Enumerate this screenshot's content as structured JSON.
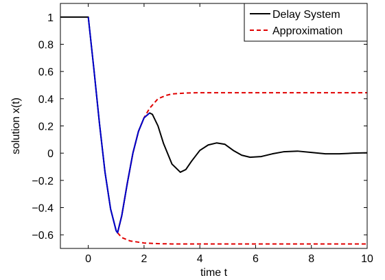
{
  "chart_data": {
    "type": "line",
    "title": "",
    "xlabel": "time t",
    "ylabel": "solution x(t)",
    "xlim": [
      -1,
      10
    ],
    "ylim": [
      -0.7,
      1.1
    ],
    "xticks": [
      0,
      2,
      4,
      6,
      8,
      10
    ],
    "yticks": [
      -0.6,
      -0.4,
      -0.2,
      0,
      0.2,
      0.4,
      0.6,
      0.8,
      1
    ],
    "xtick_labels": [
      "0",
      "2",
      "4",
      "6",
      "8",
      "10"
    ],
    "ytick_labels": [
      "−0.6",
      "−0.4",
      "−0.2",
      "0",
      "0.2",
      "0.4",
      "0.6",
      "0.8",
      "1"
    ],
    "grid": false,
    "legend_position": "top-right",
    "series": [
      {
        "name": "Delay System",
        "color": "#000000",
        "style": "solid",
        "x": [
          -1,
          0,
          0.2,
          0.4,
          0.6,
          0.8,
          1.0,
          1.05,
          1.2,
          1.4,
          1.6,
          1.8,
          2.0,
          2.2,
          2.3,
          2.5,
          2.7,
          3.0,
          3.3,
          3.5,
          3.7,
          4.0,
          4.3,
          4.6,
          4.9,
          5.2,
          5.5,
          5.8,
          6.2,
          6.6,
          7.0,
          7.5,
          8.0,
          8.5,
          9.0,
          9.5,
          10.0
        ],
        "y": [
          1,
          1,
          0.62,
          0.22,
          -0.14,
          -0.41,
          -0.57,
          -0.585,
          -0.46,
          -0.22,
          0.0,
          0.16,
          0.26,
          0.295,
          0.285,
          0.2,
          0.07,
          -0.08,
          -0.14,
          -0.12,
          -0.06,
          0.02,
          0.06,
          0.075,
          0.065,
          0.02,
          -0.015,
          -0.03,
          -0.025,
          -0.005,
          0.01,
          0.015,
          0.005,
          -0.005,
          -0.005,
          0.0,
          0.003
        ]
      },
      {
        "name": "Approximation",
        "color": "#e00000",
        "style": "dashed",
        "branches": [
          {
            "x": [
              1.05,
              1.2,
              1.5,
              2.0,
              2.5,
              3.0,
              3.5,
              4.0,
              5.0,
              6.0,
              8.0,
              10.0
            ],
            "y": [
              -0.585,
              -0.62,
              -0.645,
              -0.66,
              -0.665,
              -0.667,
              -0.667,
              -0.667,
              -0.667,
              -0.667,
              -0.667,
              -0.667
            ]
          },
          {
            "x": [
              1.05,
              1.2,
              1.4,
              1.6,
              1.8,
              2.0,
              2.2,
              2.5,
              2.8,
              3.0,
              3.5,
              4.0,
              5.0,
              6.0,
              8.0,
              10.0
            ],
            "y": [
              -0.585,
              -0.46,
              -0.22,
              0.0,
              0.16,
              0.26,
              0.33,
              0.4,
              0.425,
              0.435,
              0.442,
              0.444,
              0.444,
              0.444,
              0.444,
              0.444
            ]
          }
        ]
      },
      {
        "name": "",
        "color": "#0000cc",
        "style": "solid",
        "x": [
          0,
          0.2,
          0.4,
          0.6,
          0.8,
          1.0,
          1.05,
          1.2,
          1.4,
          1.6,
          1.8,
          2.0,
          2.2
        ],
        "y": [
          1,
          0.62,
          0.22,
          -0.14,
          -0.41,
          -0.57,
          -0.585,
          -0.46,
          -0.22,
          0.0,
          0.16,
          0.26,
          0.295
        ]
      }
    ]
  }
}
